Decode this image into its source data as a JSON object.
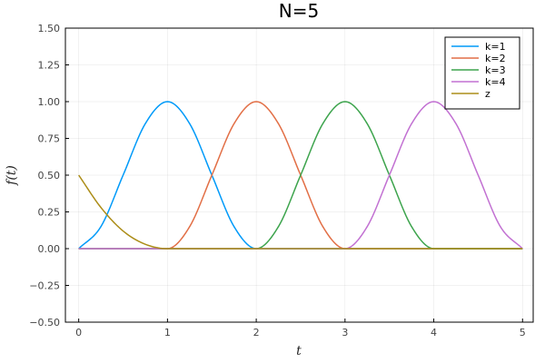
{
  "chart_data": {
    "type": "line",
    "title": "N=5",
    "xlabel": "t",
    "ylabel": "f(t)",
    "xlim": [
      -0.15,
      5.12
    ],
    "ylim": [
      -0.5,
      1.5
    ],
    "xticks": [
      0,
      1,
      2,
      3,
      4,
      5
    ],
    "xtick_labels": [
      "0",
      "1",
      "2",
      "3",
      "4",
      "5"
    ],
    "yticks": [
      -0.5,
      -0.25,
      0,
      0.25,
      0.5,
      0.75,
      1.0,
      1.25,
      1.5
    ],
    "ytick_labels": [
      "−0.50",
      "−0.25",
      "0.00",
      "0.25",
      "0.50",
      "0.75",
      "1.00",
      "1.25",
      "1.50"
    ],
    "grid": true,
    "legend_position": "top-right",
    "x": [
      0,
      0.25,
      0.5,
      0.75,
      1.0,
      1.25,
      1.5,
      1.75,
      2.0,
      2.25,
      2.5,
      2.75,
      3.0,
      3.25,
      3.5,
      3.75,
      4.0,
      4.25,
      4.5,
      4.75,
      5.0
    ],
    "series": [
      {
        "name": "k=1",
        "color": "#009af9",
        "values": [
          0,
          0.15,
          0.5,
          0.85,
          1.0,
          0.85,
          0.5,
          0.15,
          0,
          0,
          0,
          0,
          0,
          0,
          0,
          0,
          0,
          0,
          0,
          0,
          0
        ]
      },
      {
        "name": "k=2",
        "color": "#e26f46",
        "values": [
          0,
          0,
          0,
          0,
          0,
          0.15,
          0.5,
          0.85,
          1.0,
          0.85,
          0.5,
          0.15,
          0,
          0,
          0,
          0,
          0,
          0,
          0,
          0,
          0
        ]
      },
      {
        "name": "k=3",
        "color": "#3da44d",
        "values": [
          0,
          0,
          0,
          0,
          0,
          0,
          0,
          0,
          0,
          0.15,
          0.5,
          0.85,
          1.0,
          0.85,
          0.5,
          0.15,
          0,
          0,
          0,
          0,
          0
        ]
      },
      {
        "name": "k=4",
        "color": "#c271d2",
        "values": [
          0,
          0,
          0,
          0,
          0,
          0,
          0,
          0,
          0,
          0,
          0,
          0,
          0,
          0.15,
          0.5,
          0.85,
          1.0,
          0.85,
          0.5,
          0.15,
          0
        ]
      },
      {
        "name": "z",
        "color": "#ac8d18",
        "values": [
          0.5,
          0.28,
          0.12,
          0.03,
          0,
          0,
          0,
          0,
          0,
          0,
          0,
          0,
          0,
          0,
          0,
          0,
          0,
          0,
          0,
          0,
          0
        ]
      }
    ]
  }
}
